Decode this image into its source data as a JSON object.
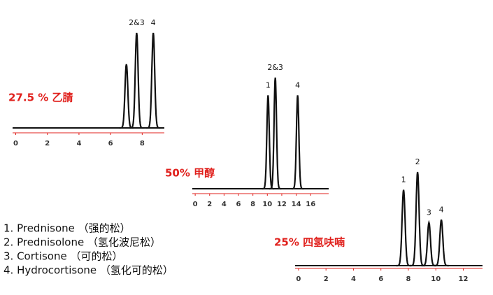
{
  "chart_data": [
    {
      "type": "chromatogram",
      "title": "27.5 % 乙腈",
      "xlim": [
        -0.2,
        9.4
      ],
      "xticks": [
        0,
        2,
        4,
        6,
        8
      ],
      "peaks": {
        "x": [
          7.0,
          7.65,
          8.7
        ],
        "height": [
          0.67,
          1,
          1
        ],
        "labels": [
          null,
          "2&3",
          "4"
        ]
      }
    },
    {
      "type": "chromatogram",
      "title": "50% 甲醇",
      "xlim": [
        -0.4,
        18.5
      ],
      "xticks": [
        0,
        2,
        4,
        6,
        8,
        10,
        12,
        14,
        16
      ],
      "peaks": {
        "x": [
          10.1,
          11.1,
          14.2
        ],
        "height": [
          0.84,
          1,
          0.84
        ],
        "labels": [
          "1",
          "2&3",
          "4"
        ]
      }
    },
    {
      "type": "chromatogram",
      "title": "25% 四氢呋喃",
      "xlim": [
        -0.25,
        13.4
      ],
      "xticks": [
        0,
        2,
        4,
        6,
        8,
        10,
        12
      ],
      "peaks": {
        "x": [
          7.65,
          8.67,
          9.5,
          10.4
        ],
        "height": [
          0.81,
          1,
          0.46,
          0.49
        ],
        "labels": [
          "1",
          "2",
          "3",
          "4"
        ]
      }
    }
  ],
  "compounds": [
    "1. Prednisone （强的松）",
    "2. Prednisolone （氢化波尼松）",
    "3. Cortisone （可的松）",
    "4. Hydrocortisone （氢化可的松）"
  ]
}
